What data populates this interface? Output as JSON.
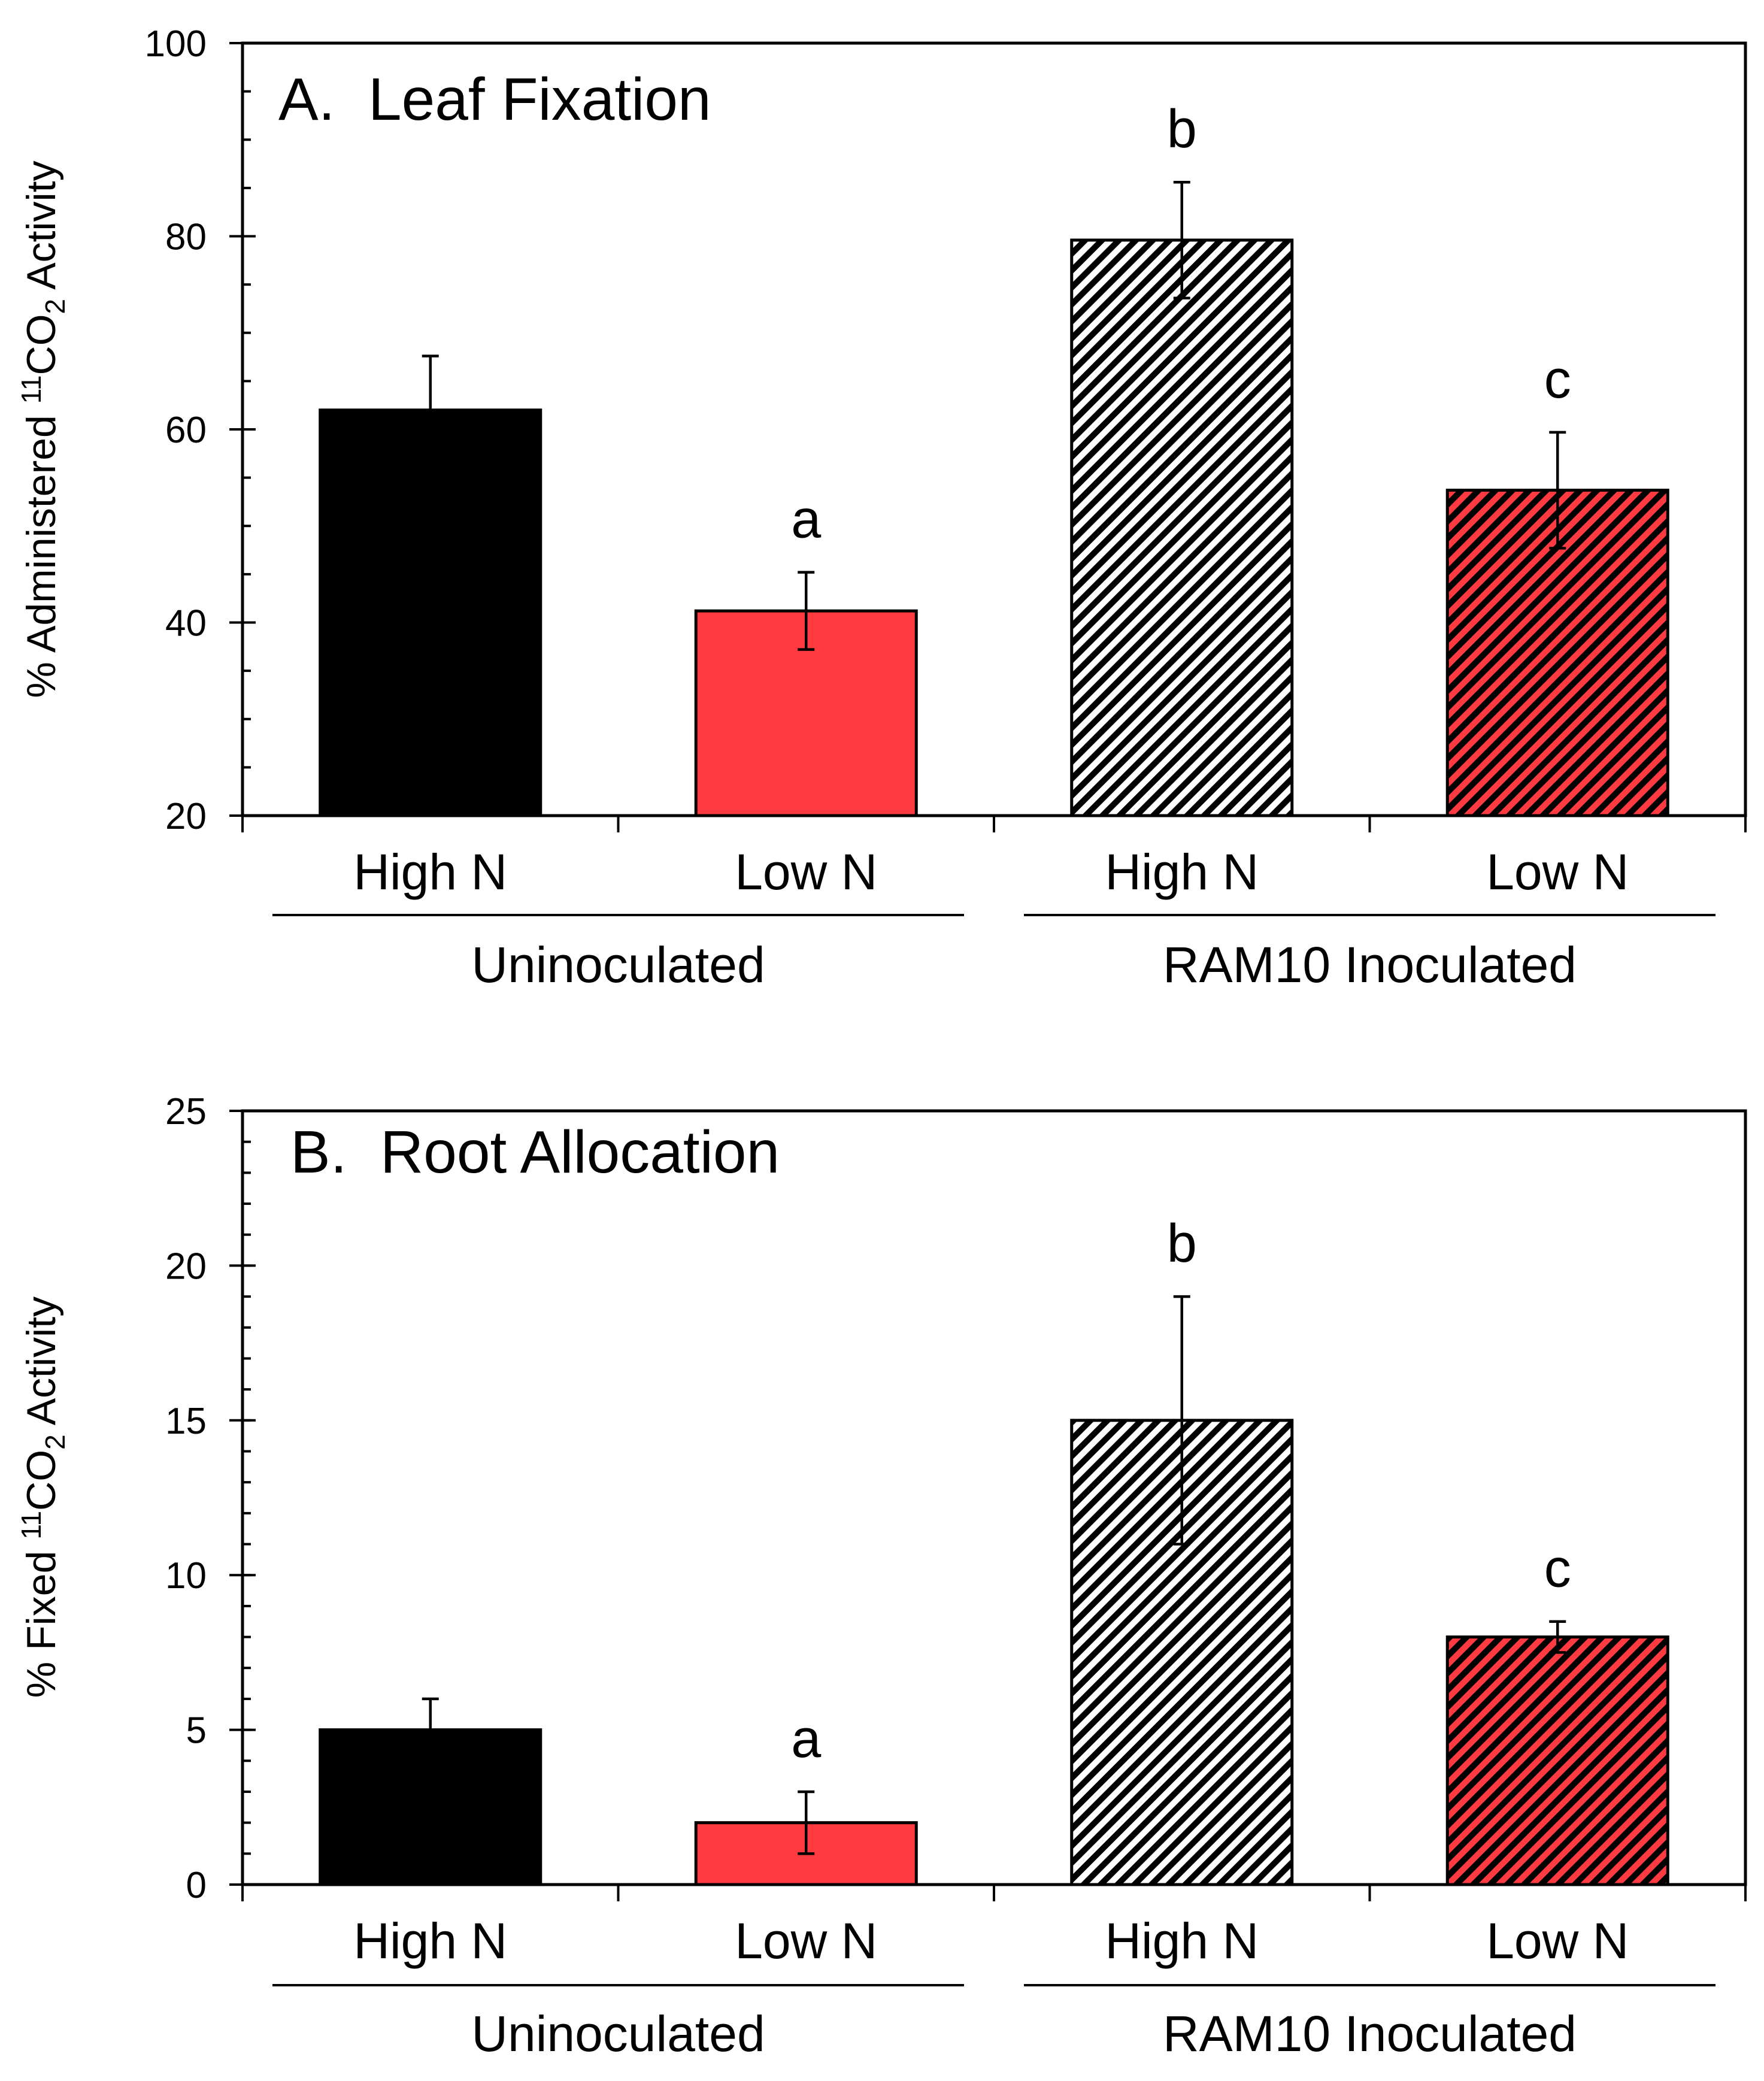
{
  "colors": {
    "black": "#000000",
    "red": "#ff3a40",
    "white": "#ffffff"
  },
  "chart_data": [
    {
      "type": "bar",
      "title": "A.  Leaf Fixation",
      "ylabel": "% Administered 11CO2 Activity",
      "ylabel_parts": {
        "pre": "% Administered ",
        "sup": "11",
        "mid": "CO",
        "sub": "2",
        "post": " Activity"
      },
      "ylim": [
        20,
        100
      ],
      "yticks": [
        20,
        40,
        60,
        80,
        100
      ],
      "minor_step": 5,
      "categories": [
        "High N",
        "Low N",
        "High N",
        "Low N"
      ],
      "groups": [
        "Uninoculated",
        "RAM10 Inoculated"
      ],
      "values": [
        62,
        41.2,
        79.6,
        53.7
      ],
      "errors": [
        5.6,
        4.0,
        6.0,
        6.0
      ],
      "styles": [
        "solid-black",
        "solid-red",
        "hatch-white",
        "hatch-red"
      ],
      "annotations": [
        "",
        "a",
        "b",
        "c"
      ]
    },
    {
      "type": "bar",
      "title": "B.  Root Allocation",
      "ylabel": "% Fixed 11CO2 Activity",
      "ylabel_parts": {
        "pre": "% Fixed ",
        "sup": "11",
        "mid": "CO",
        "sub": "2",
        "post": " Activity"
      },
      "ylim": [
        0,
        25
      ],
      "yticks": [
        0,
        5,
        10,
        15,
        20,
        25
      ],
      "minor_step": 1,
      "categories": [
        "High N",
        "Low N",
        "High N",
        "Low N"
      ],
      "groups": [
        "Uninoculated",
        "RAM10 Inoculated"
      ],
      "values": [
        5.0,
        2.0,
        15.0,
        8.0
      ],
      "errors": [
        1.0,
        1.0,
        4.0,
        0.5
      ],
      "styles": [
        "solid-black",
        "solid-red",
        "hatch-white",
        "hatch-red"
      ],
      "annotations": [
        "",
        "a",
        "b",
        "c"
      ]
    }
  ]
}
